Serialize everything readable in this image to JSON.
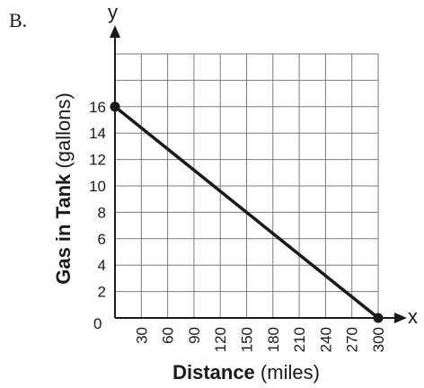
{
  "panel_label": "B.",
  "axis_letters": {
    "x": "x",
    "y": "y"
  },
  "origin_label": "0",
  "xlabel": {
    "main": "Distance",
    "unit": "(miles)"
  },
  "ylabel": {
    "main": "Gas in Tank",
    "unit": "(gallons)"
  },
  "chart_data": {
    "type": "line",
    "title": "",
    "xlabel": "Distance (miles)",
    "ylabel": "Gas in Tank (gallons)",
    "xlim": [
      0,
      300
    ],
    "ylim": [
      0,
      20
    ],
    "x_ticks": [
      30,
      60,
      90,
      120,
      150,
      180,
      210,
      240,
      270,
      300
    ],
    "y_ticks": [
      2,
      4,
      6,
      8,
      10,
      12,
      14,
      16
    ],
    "grid": true,
    "series": [
      {
        "x": [
          0,
          300
        ],
        "y": [
          16,
          0
        ],
        "markers": "endpoints"
      }
    ]
  }
}
